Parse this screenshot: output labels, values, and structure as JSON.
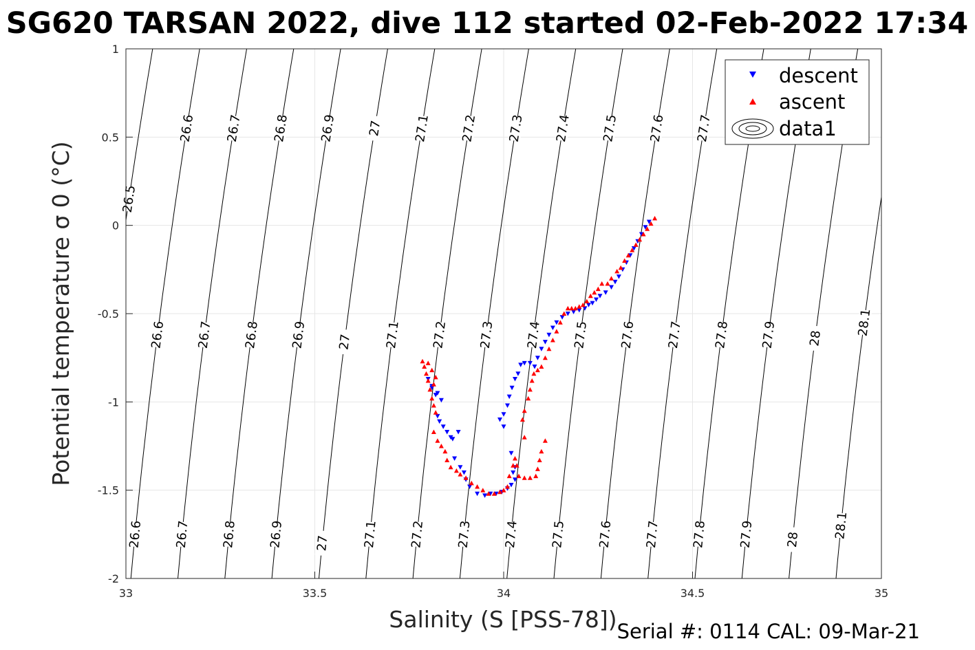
{
  "chart_data": {
    "type": "scatter",
    "title": "SG620 TARSAN 2022, dive 112 started 02-Feb-2022 17:34",
    "xlabel": "Salinity (S [PSS-78])",
    "ylabel": "Potential temperature σ 0 (°C)",
    "xlim": [
      33,
      35
    ],
    "ylim": [
      -2,
      1
    ],
    "x_ticks": [
      33,
      33.5,
      34,
      34.5,
      35
    ],
    "x_tick_labels": [
      "33",
      "33.5",
      "34",
      "34.5",
      "35"
    ],
    "y_ticks": [
      -2,
      -1.5,
      -1,
      -0.5,
      0,
      0.5,
      1
    ],
    "y_tick_labels": [
      "-2",
      "-1.5",
      "-1",
      "-0.5",
      "0",
      "0.5",
      "1"
    ],
    "grid": true,
    "legend_position": "top-right",
    "legend": [
      {
        "label": "descent",
        "marker": "triangle-down",
        "color": "#0000ff"
      },
      {
        "label": "ascent",
        "marker": "triangle-up",
        "color": "#ff0000"
      },
      {
        "label": "data1",
        "marker": "contour"
      }
    ],
    "footer": "Serial #: 0114  CAL: 09-Mar-21",
    "contours": {
      "sigma_levels": [
        26.5,
        26.6,
        26.7,
        26.8,
        26.9,
        27,
        27.1,
        27.2,
        27.3,
        27.4,
        27.5,
        27.6,
        27.7,
        27.8,
        27.9,
        28,
        28.1
      ],
      "labels": [
        {
          "text": "26.5",
          "level": 26.5,
          "t": 0.15
        },
        {
          "text": "26.6",
          "level": 26.6,
          "t": 0.55
        },
        {
          "text": "26.7",
          "level": 26.7,
          "t": 0.55
        },
        {
          "text": "26.8",
          "level": 26.8,
          "t": 0.55
        },
        {
          "text": "26.9",
          "level": 26.9,
          "t": 0.55
        },
        {
          "text": "27",
          "level": 27.0,
          "t": 0.55
        },
        {
          "text": "27.1",
          "level": 27.1,
          "t": 0.55
        },
        {
          "text": "27.2",
          "level": 27.2,
          "t": 0.55
        },
        {
          "text": "27.3",
          "level": 27.3,
          "t": 0.55
        },
        {
          "text": "27.4",
          "level": 27.4,
          "t": 0.55
        },
        {
          "text": "27.5",
          "level": 27.5,
          "t": 0.55
        },
        {
          "text": "27.6",
          "level": 27.6,
          "t": 0.55
        },
        {
          "text": "27.7",
          "level": 27.7,
          "t": 0.55
        },
        {
          "text": "26.6",
          "level": 26.6,
          "t": -0.62
        },
        {
          "text": "26.7",
          "level": 26.7,
          "t": -0.62
        },
        {
          "text": "26.8",
          "level": 26.8,
          "t": -0.62
        },
        {
          "text": "26.9",
          "level": 26.9,
          "t": -0.62
        },
        {
          "text": "27",
          "level": 27.0,
          "t": -0.66
        },
        {
          "text": "27.1",
          "level": 27.1,
          "t": -0.62
        },
        {
          "text": "27.2",
          "level": 27.2,
          "t": -0.62
        },
        {
          "text": "27.3",
          "level": 27.3,
          "t": -0.62
        },
        {
          "text": "27.4",
          "level": 27.4,
          "t": -0.62
        },
        {
          "text": "27.5",
          "level": 27.5,
          "t": -0.62
        },
        {
          "text": "27.6",
          "level": 27.6,
          "t": -0.62
        },
        {
          "text": "27.7",
          "level": 27.7,
          "t": -0.62
        },
        {
          "text": "27.8",
          "level": 27.8,
          "t": -0.62
        },
        {
          "text": "27.9",
          "level": 27.9,
          "t": -0.62
        },
        {
          "text": "28",
          "level": 28.0,
          "t": -0.64
        },
        {
          "text": "28.1",
          "level": 28.1,
          "t": -0.55
        },
        {
          "text": "26.6",
          "level": 26.6,
          "t": -1.75
        },
        {
          "text": "26.7",
          "level": 26.7,
          "t": -1.75
        },
        {
          "text": "26.8",
          "level": 26.8,
          "t": -1.75
        },
        {
          "text": "26.9",
          "level": 26.9,
          "t": -1.75
        },
        {
          "text": "27",
          "level": 27.0,
          "t": -1.8
        },
        {
          "text": "27.1",
          "level": 27.1,
          "t": -1.75
        },
        {
          "text": "27.2",
          "level": 27.2,
          "t": -1.75
        },
        {
          "text": "27.3",
          "level": 27.3,
          "t": -1.75
        },
        {
          "text": "27.4",
          "level": 27.4,
          "t": -1.75
        },
        {
          "text": "27.5",
          "level": 27.5,
          "t": -1.75
        },
        {
          "text": "27.6",
          "level": 27.6,
          "t": -1.75
        },
        {
          "text": "27.7",
          "level": 27.7,
          "t": -1.75
        },
        {
          "text": "27.8",
          "level": 27.8,
          "t": -1.75
        },
        {
          "text": "27.9",
          "level": 27.9,
          "t": -1.75
        },
        {
          "text": "28",
          "level": 28.0,
          "t": -1.78
        },
        {
          "text": "28.1",
          "level": 28.1,
          "t": -1.7
        }
      ]
    },
    "series": [
      {
        "name": "descent",
        "marker": "triangle-down",
        "color": "#0000ff",
        "points": [
          [
            34.385,
            0.02
          ],
          [
            34.375,
            -0.01
          ],
          [
            34.365,
            -0.05
          ],
          [
            34.355,
            -0.09
          ],
          [
            34.345,
            -0.13
          ],
          [
            34.335,
            -0.17
          ],
          [
            34.325,
            -0.21
          ],
          [
            34.315,
            -0.25
          ],
          [
            34.305,
            -0.29
          ],
          [
            34.295,
            -0.32
          ],
          [
            34.285,
            -0.35
          ],
          [
            34.27,
            -0.38
          ],
          [
            34.255,
            -0.4
          ],
          [
            34.245,
            -0.42
          ],
          [
            34.235,
            -0.44
          ],
          [
            34.225,
            -0.45
          ],
          [
            34.215,
            -0.47
          ],
          [
            34.2,
            -0.48
          ],
          [
            34.185,
            -0.49
          ],
          [
            34.17,
            -0.5
          ],
          [
            34.155,
            -0.52
          ],
          [
            34.14,
            -0.55
          ],
          [
            34.13,
            -0.58
          ],
          [
            34.12,
            -0.62
          ],
          [
            34.11,
            -0.66
          ],
          [
            34.1,
            -0.7
          ],
          [
            34.09,
            -0.75
          ],
          [
            34.082,
            -0.8
          ],
          [
            34.07,
            -0.78
          ],
          [
            34.055,
            -0.78
          ],
          [
            34.045,
            -0.79
          ],
          [
            34.038,
            -0.84
          ],
          [
            34.03,
            -0.87
          ],
          [
            34.022,
            -0.92
          ],
          [
            34.015,
            -0.97
          ],
          [
            34.01,
            -1.02
          ],
          [
            34.0,
            -1.07
          ],
          [
            33.99,
            -1.1
          ],
          [
            34.0,
            -1.14
          ],
          [
            34.02,
            -1.29
          ],
          [
            34.03,
            -1.37
          ],
          [
            34.025,
            -1.4
          ],
          [
            34.03,
            -1.44
          ],
          [
            34.02,
            -1.47
          ],
          [
            34.01,
            -1.49
          ],
          [
            33.995,
            -1.51
          ],
          [
            33.98,
            -1.52
          ],
          [
            33.965,
            -1.52
          ],
          [
            33.95,
            -1.53
          ],
          [
            33.93,
            -1.52
          ],
          [
            33.91,
            -1.48
          ],
          [
            33.9,
            -1.44
          ],
          [
            33.895,
            -1.4
          ],
          [
            33.885,
            -1.37
          ],
          [
            33.87,
            -1.32
          ],
          [
            33.86,
            -1.2
          ],
          [
            33.85,
            -1.17
          ],
          [
            33.84,
            -1.14
          ],
          [
            33.83,
            -1.11
          ],
          [
            33.825,
            -1.08
          ],
          [
            33.835,
            -0.99
          ],
          [
            33.825,
            -0.95
          ],
          [
            33.81,
            -0.92
          ],
          [
            33.8,
            -0.87
          ],
          [
            33.81,
            -0.91
          ],
          [
            33.82,
            -0.96
          ],
          [
            33.88,
            -1.17
          ],
          [
            33.865,
            -1.21
          ]
        ]
      },
      {
        "name": "ascent",
        "marker": "triangle-up",
        "color": "#ff0000",
        "points": [
          [
            34.4,
            0.04
          ],
          [
            34.39,
            0.01
          ],
          [
            34.38,
            -0.02
          ],
          [
            34.37,
            -0.05
          ],
          [
            34.36,
            -0.08
          ],
          [
            34.35,
            -0.11
          ],
          [
            34.34,
            -0.14
          ],
          [
            34.33,
            -0.17
          ],
          [
            34.32,
            -0.2
          ],
          [
            34.31,
            -0.24
          ],
          [
            34.3,
            -0.26
          ],
          [
            34.285,
            -0.3
          ],
          [
            34.275,
            -0.33
          ],
          [
            34.26,
            -0.33
          ],
          [
            34.25,
            -0.36
          ],
          [
            34.24,
            -0.38
          ],
          [
            34.23,
            -0.4
          ],
          [
            34.22,
            -0.43
          ],
          [
            34.21,
            -0.45
          ],
          [
            34.2,
            -0.46
          ],
          [
            34.19,
            -0.47
          ],
          [
            34.18,
            -0.47
          ],
          [
            34.17,
            -0.47
          ],
          [
            34.16,
            -0.5
          ],
          [
            34.15,
            -0.55
          ],
          [
            34.14,
            -0.6
          ],
          [
            34.13,
            -0.65
          ],
          [
            34.12,
            -0.7
          ],
          [
            34.11,
            -0.75
          ],
          [
            34.1,
            -0.8
          ],
          [
            34.09,
            -0.82
          ],
          [
            34.08,
            -0.84
          ],
          [
            34.075,
            -0.88
          ],
          [
            34.07,
            -0.93
          ],
          [
            34.065,
            -0.98
          ],
          [
            34.055,
            -1.05
          ],
          [
            34.05,
            -1.1
          ],
          [
            34.055,
            -1.2
          ],
          [
            34.11,
            -1.22
          ],
          [
            34.1,
            -1.28
          ],
          [
            34.095,
            -1.33
          ],
          [
            34.09,
            -1.38
          ],
          [
            34.085,
            -1.42
          ],
          [
            34.07,
            -1.43
          ],
          [
            34.055,
            -1.43
          ],
          [
            34.04,
            -1.42
          ],
          [
            34.035,
            -1.36
          ],
          [
            34.03,
            -1.32
          ],
          [
            34.025,
            -1.36
          ],
          [
            34.015,
            -1.42
          ],
          [
            34.01,
            -1.48
          ],
          [
            34.0,
            -1.5
          ],
          [
            33.99,
            -1.51
          ],
          [
            33.975,
            -1.52
          ],
          [
            33.96,
            -1.52
          ],
          [
            33.945,
            -1.5
          ],
          [
            33.93,
            -1.48
          ],
          [
            33.915,
            -1.46
          ],
          [
            33.9,
            -1.43
          ],
          [
            33.885,
            -1.41
          ],
          [
            33.875,
            -1.39
          ],
          [
            33.86,
            -1.37
          ],
          [
            33.85,
            -1.33
          ],
          [
            33.845,
            -1.28
          ],
          [
            33.835,
            -1.25
          ],
          [
            33.825,
            -1.22
          ],
          [
            33.815,
            -1.17
          ],
          [
            33.82,
            -1.06
          ],
          [
            33.815,
            -1.02
          ],
          [
            33.81,
            -0.98
          ],
          [
            33.805,
            -0.93
          ],
          [
            33.8,
            -0.88
          ],
          [
            33.795,
            -0.84
          ],
          [
            33.79,
            -0.8
          ],
          [
            33.785,
            -0.77
          ],
          [
            33.8,
            -0.78
          ],
          [
            33.81,
            -0.82
          ],
          [
            33.82,
            -0.86
          ],
          [
            33.815,
            -0.9
          ]
        ]
      }
    ]
  }
}
